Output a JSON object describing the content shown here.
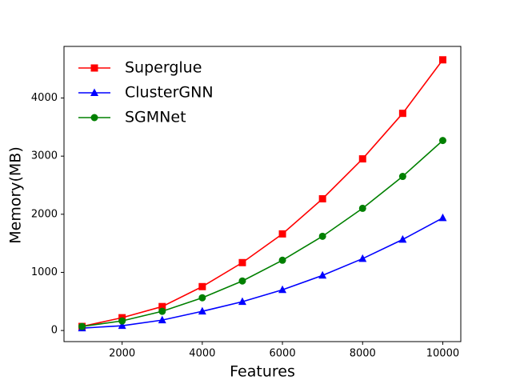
{
  "chart_data": {
    "type": "line",
    "x_label": "Features",
    "y_label": "Memory(MB)",
    "x": [
      1000,
      2000,
      3000,
      4000,
      5000,
      6000,
      7000,
      8000,
      9000,
      10000
    ],
    "series": [
      {
        "name": "Superglue",
        "color": "#ff0000",
        "marker": "square",
        "values": [
          70,
          220,
          412,
          755,
          1168,
          1662,
          2266,
          2953,
          3736,
          4657
        ]
      },
      {
        "name": "ClusterGNN",
        "color": "#0000ff",
        "marker": "triangle",
        "values": [
          41,
          82,
          179,
          330,
          495,
          700,
          948,
          1236,
          1566,
          1937
        ]
      },
      {
        "name": "SGMNet",
        "color": "#008000",
        "marker": "circle",
        "values": [
          69,
          165,
          330,
          563,
          852,
          1209,
          1621,
          2102,
          2651,
          3269
        ]
      }
    ],
    "xlim": [
      550,
      10450
    ],
    "ylim": [
      -191,
      4888
    ],
    "xticks": [
      2000,
      4000,
      6000,
      8000,
      10000
    ],
    "yticks": [
      0,
      1000,
      2000,
      3000,
      4000
    ],
    "legend": "upper left",
    "grid": false
  }
}
